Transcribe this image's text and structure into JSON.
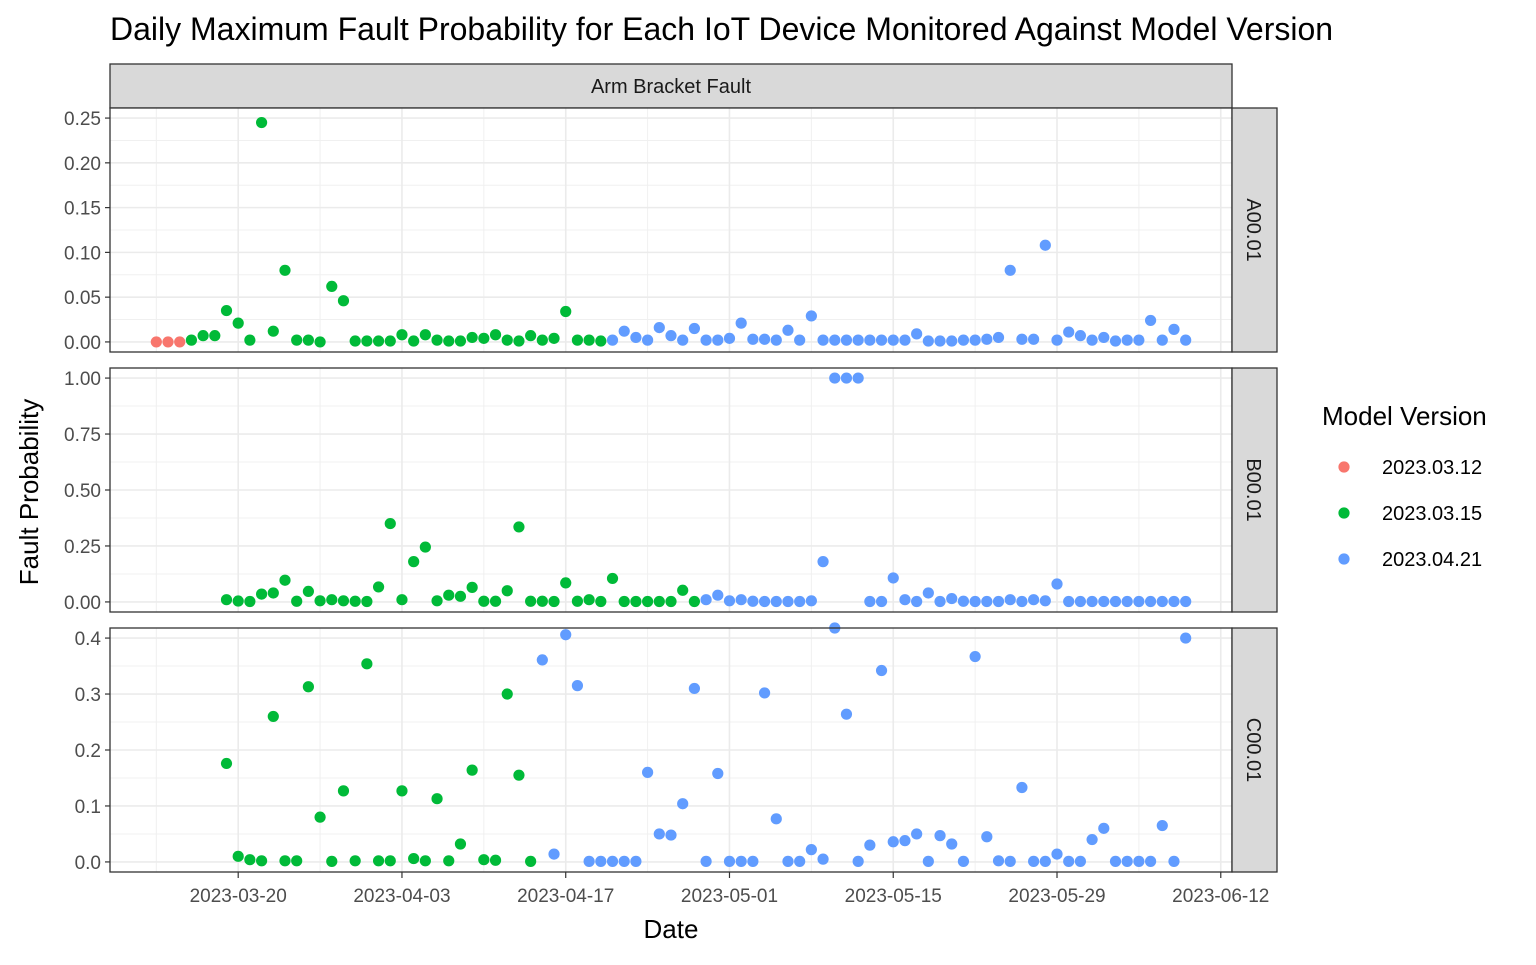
{
  "chart_data": {
    "type": "scatter",
    "title": "Daily Maximum Fault Probability for Each IoT Device Monitored Against Model Version",
    "xlabel": "Date",
    "ylabel": "Fault Probability",
    "column_strip": "Arm Bracket Fault",
    "legend": {
      "title": "Model Version",
      "placement": "right",
      "entries": [
        {
          "name": "2023.03.12",
          "color": "#F8766D"
        },
        {
          "name": "2023.03.15",
          "color": "#00BA38"
        },
        {
          "name": "2023.04.21",
          "color": "#619CFF"
        }
      ]
    },
    "x_axis": {
      "start": "2023-03-13",
      "end": "2023-06-12",
      "ticks": [
        "2023-03-20",
        "2023-04-03",
        "2023-04-17",
        "2023-05-01",
        "2023-05-15",
        "2023-05-29",
        "2023-06-12"
      ]
    },
    "grid": true,
    "panels": [
      {
        "label": "A00.01",
        "ylim": [
          0,
          0.25
        ],
        "yticks": [
          0,
          0.05,
          0.1,
          0.15,
          0.2,
          0.25
        ],
        "ytick_labels": [
          "0.00",
          "0.05",
          "0.10",
          "0.15",
          "0.20",
          "0.25"
        ],
        "series": [
          {
            "name": "2023.03.12",
            "x": [
              "2023-03-13",
              "2023-03-14",
              "2023-03-15"
            ],
            "y": [
              0.0,
              0.0,
              0.0
            ]
          },
          {
            "name": "2023.03.15",
            "x": [
              "2023-03-16",
              "2023-03-17",
              "2023-03-18",
              "2023-03-19",
              "2023-03-20",
              "2023-03-21",
              "2023-03-22",
              "2023-03-23",
              "2023-03-24",
              "2023-03-25",
              "2023-03-26",
              "2023-03-27",
              "2023-03-28",
              "2023-03-29",
              "2023-03-30",
              "2023-03-31",
              "2023-04-01",
              "2023-04-02",
              "2023-04-03",
              "2023-04-04",
              "2023-04-05",
              "2023-04-06",
              "2023-04-07",
              "2023-04-08",
              "2023-04-09",
              "2023-04-10",
              "2023-04-11",
              "2023-04-12",
              "2023-04-13",
              "2023-04-14",
              "2023-04-15",
              "2023-04-16",
              "2023-04-17",
              "2023-04-18",
              "2023-04-19",
              "2023-04-20"
            ],
            "y": [
              0.002,
              0.007,
              0.007,
              0.035,
              0.021,
              0.002,
              0.245,
              0.012,
              0.08,
              0.002,
              0.002,
              0.0,
              0.062,
              0.046,
              0.001,
              0.001,
              0.001,
              0.001,
              0.008,
              0.001,
              0.008,
              0.002,
              0.001,
              0.001,
              0.005,
              0.004,
              0.008,
              0.002,
              0.001,
              0.007,
              0.002,
              0.004,
              0.034,
              0.002,
              0.002,
              0.001
            ]
          },
          {
            "name": "2023.04.21",
            "x": [
              "2023-04-21",
              "2023-04-22",
              "2023-04-23",
              "2023-04-24",
              "2023-04-25",
              "2023-04-26",
              "2023-04-27",
              "2023-04-28",
              "2023-04-29",
              "2023-04-30",
              "2023-05-01",
              "2023-05-02",
              "2023-05-03",
              "2023-05-04",
              "2023-05-05",
              "2023-05-06",
              "2023-05-07",
              "2023-05-08",
              "2023-05-09",
              "2023-05-10",
              "2023-05-11",
              "2023-05-12",
              "2023-05-13",
              "2023-05-14",
              "2023-05-15",
              "2023-05-16",
              "2023-05-17",
              "2023-05-18",
              "2023-05-19",
              "2023-05-20",
              "2023-05-21",
              "2023-05-22",
              "2023-05-23",
              "2023-05-24",
              "2023-05-25",
              "2023-05-26",
              "2023-05-27",
              "2023-05-28",
              "2023-05-29",
              "2023-05-30",
              "2023-05-31",
              "2023-06-01",
              "2023-06-02",
              "2023-06-03",
              "2023-06-04",
              "2023-06-05",
              "2023-06-06",
              "2023-06-07",
              "2023-06-08",
              "2023-06-09"
            ],
            "y": [
              0.002,
              0.012,
              0.005,
              0.002,
              0.016,
              0.007,
              0.002,
              0.015,
              0.002,
              0.002,
              0.004,
              0.021,
              0.003,
              0.003,
              0.002,
              0.013,
              0.002,
              0.029,
              0.002,
              0.002,
              0.002,
              0.002,
              0.002,
              0.002,
              0.002,
              0.002,
              0.009,
              0.001,
              0.001,
              0.001,
              0.002,
              0.002,
              0.003,
              0.005,
              0.08,
              0.003,
              0.003,
              0.108,
              0.002,
              0.011,
              0.007,
              0.002,
              0.005,
              0.001,
              0.002,
              0.002,
              0.024,
              0.002,
              0.014,
              0.002
            ]
          }
        ]
      },
      {
        "label": "B00.01",
        "ylim": [
          0,
          1.0
        ],
        "yticks": [
          0,
          0.25,
          0.5,
          0.75,
          1.0
        ],
        "ytick_labels": [
          "0.00",
          "0.25",
          "0.50",
          "0.75",
          "1.00"
        ],
        "series": [
          {
            "name": "2023.03.15",
            "x": [
              "2023-03-19",
              "2023-03-20",
              "2023-03-21",
              "2023-03-22",
              "2023-03-23",
              "2023-03-24",
              "2023-03-25",
              "2023-03-26",
              "2023-03-27",
              "2023-03-28",
              "2023-03-29",
              "2023-03-30",
              "2023-03-31",
              "2023-04-01",
              "2023-04-02",
              "2023-04-03",
              "2023-04-04",
              "2023-04-05",
              "2023-04-06",
              "2023-04-07",
              "2023-04-08",
              "2023-04-09",
              "2023-04-10",
              "2023-04-11",
              "2023-04-12",
              "2023-04-13",
              "2023-04-14",
              "2023-04-15",
              "2023-04-16",
              "2023-04-17",
              "2023-04-18",
              "2023-04-19",
              "2023-04-20",
              "2023-04-21",
              "2023-04-22",
              "2023-04-23",
              "2023-04-24",
              "2023-04-25",
              "2023-04-26",
              "2023-04-27",
              "2023-04-28"
            ],
            "y": [
              0.01,
              0.004,
              0.002,
              0.035,
              0.04,
              0.097,
              0.003,
              0.047,
              0.005,
              0.01,
              0.005,
              0.003,
              0.002,
              0.067,
              0.35,
              0.01,
              0.18,
              0.245,
              0.005,
              0.03,
              0.025,
              0.065,
              0.003,
              0.003,
              0.05,
              0.335,
              0.003,
              0.003,
              0.002,
              0.085,
              0.003,
              0.01,
              0.002,
              0.105,
              0.002,
              0.002,
              0.002,
              0.002,
              0.002,
              0.052,
              0.002
            ]
          },
          {
            "name": "2023.04.21",
            "x": [
              "2023-04-29",
              "2023-04-30",
              "2023-05-01",
              "2023-05-02",
              "2023-05-03",
              "2023-05-04",
              "2023-05-05",
              "2023-05-06",
              "2023-05-07",
              "2023-05-08",
              "2023-05-09",
              "2023-05-10",
              "2023-05-11",
              "2023-05-12",
              "2023-05-13",
              "2023-05-14",
              "2023-05-15",
              "2023-05-16",
              "2023-05-17",
              "2023-05-18",
              "2023-05-19",
              "2023-05-20",
              "2023-05-21",
              "2023-05-22",
              "2023-05-23",
              "2023-05-24",
              "2023-05-25",
              "2023-05-26",
              "2023-05-27",
              "2023-05-28",
              "2023-05-29",
              "2023-05-30",
              "2023-05-31",
              "2023-06-01",
              "2023-06-02",
              "2023-06-03",
              "2023-06-04",
              "2023-06-05",
              "2023-06-06",
              "2023-06-07",
              "2023-06-08",
              "2023-06-09"
            ],
            "y": [
              0.01,
              0.03,
              0.005,
              0.01,
              0.003,
              0.002,
              0.002,
              0.002,
              0.002,
              0.005,
              0.18,
              1.0,
              1.0,
              1.0,
              0.002,
              0.002,
              0.107,
              0.01,
              0.002,
              0.04,
              0.002,
              0.015,
              0.003,
              0.002,
              0.002,
              0.002,
              0.01,
              0.002,
              0.01,
              0.005,
              0.08,
              0.002,
              0.002,
              0.002,
              0.002,
              0.002,
              0.002,
              0.002,
              0.002,
              0.002,
              0.002,
              0.002
            ]
          }
        ]
      },
      {
        "label": "C00.01",
        "ylim": [
          0,
          0.4
        ],
        "yticks": [
          0,
          0.1,
          0.2,
          0.3,
          0.4
        ],
        "ytick_labels": [
          "0.0",
          "0.1",
          "0.2",
          "0.3",
          "0.4"
        ],
        "series": [
          {
            "name": "2023.03.15",
            "x": [
              "2023-03-19",
              "2023-03-20",
              "2023-03-21",
              "2023-03-22",
              "2023-03-23",
              "2023-03-24",
              "2023-03-25",
              "2023-03-26",
              "2023-03-27",
              "2023-03-28",
              "2023-03-29",
              "2023-03-30",
              "2023-03-31",
              "2023-04-01",
              "2023-04-02",
              "2023-04-03",
              "2023-04-04",
              "2023-04-05",
              "2023-04-06",
              "2023-04-07",
              "2023-04-08",
              "2023-04-09",
              "2023-04-10",
              "2023-04-11",
              "2023-04-12",
              "2023-04-13",
              "2023-04-14"
            ],
            "y": [
              0.176,
              0.01,
              0.004,
              0.002,
              0.26,
              0.002,
              0.002,
              0.313,
              0.08,
              0.001,
              0.127,
              0.002,
              0.354,
              0.002,
              0.002,
              0.127,
              0.006,
              0.002,
              0.113,
              0.002,
              0.032,
              0.164,
              0.004,
              0.003,
              0.3,
              0.155,
              0.001
            ]
          },
          {
            "name": "2023.04.21",
            "x": [
              "2023-04-15",
              "2023-04-16",
              "2023-04-17",
              "2023-04-18",
              "2023-04-19",
              "2023-04-20",
              "2023-04-21",
              "2023-04-22",
              "2023-04-23",
              "2023-04-24",
              "2023-04-25",
              "2023-04-26",
              "2023-04-27",
              "2023-04-28",
              "2023-04-29",
              "2023-04-30",
              "2023-05-01",
              "2023-05-02",
              "2023-05-03",
              "2023-05-04",
              "2023-05-05",
              "2023-05-06",
              "2023-05-07",
              "2023-05-08",
              "2023-05-09",
              "2023-05-10",
              "2023-05-11",
              "2023-05-12",
              "2023-05-13",
              "2023-05-14",
              "2023-05-15",
              "2023-05-16",
              "2023-05-17",
              "2023-05-18",
              "2023-05-19",
              "2023-05-20",
              "2023-05-21",
              "2023-05-22",
              "2023-05-23",
              "2023-05-24",
              "2023-05-25",
              "2023-05-26",
              "2023-05-27",
              "2023-05-28",
              "2023-05-29",
              "2023-05-30",
              "2023-05-31",
              "2023-06-01",
              "2023-06-02",
              "2023-06-03",
              "2023-06-04",
              "2023-06-05",
              "2023-06-06",
              "2023-06-07",
              "2023-06-08",
              "2023-06-09"
            ],
            "y": [
              0.361,
              0.014,
              0.406,
              0.315,
              0.001,
              0.001,
              0.001,
              0.001,
              0.001,
              0.16,
              0.05,
              0.048,
              0.104,
              0.31,
              0.001,
              0.158,
              0.001,
              0.001,
              0.001,
              0.302,
              0.077,
              0.001,
              0.001,
              0.022,
              0.005,
              0.418,
              0.264,
              0.001,
              0.03,
              0.342,
              0.036,
              0.038,
              0.05,
              0.001,
              0.047,
              0.032,
              0.001,
              0.367,
              0.045,
              0.002,
              0.001,
              0.133,
              0.001,
              0.001,
              0.014,
              0.001,
              0.001,
              0.04,
              0.06,
              0.001,
              0.001,
              0.001,
              0.001,
              0.065,
              0.001,
              0.4
            ]
          }
        ]
      }
    ]
  }
}
